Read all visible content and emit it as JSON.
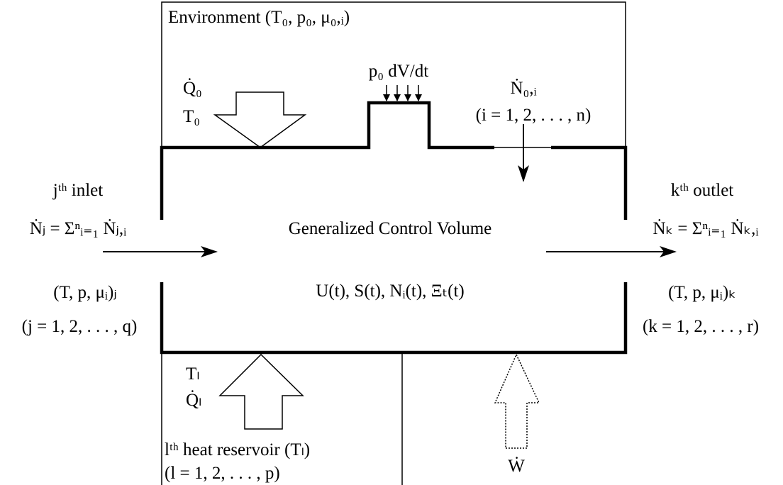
{
  "environment": {
    "label": "Environment (T₀, p₀, μ₀,ᵢ)",
    "heat": "Q̇₀",
    "temperature": "T₀",
    "work": "p₀ dV/dt",
    "flow": "Ṅ₀,ᵢ",
    "flow_range": "(i = 1, 2, . . . , n)"
  },
  "inlet": {
    "title": "jᵗʰ inlet",
    "flow": "Ṅⱼ = Σⁿᵢ₌₁ Ṅⱼ,ᵢ",
    "state": "(T, p, μᵢ)ⱼ",
    "range": "(j = 1, 2, . . . , q)"
  },
  "outlet": {
    "title": "kᵗʰ outlet",
    "flow": "Ṅₖ = Σⁿᵢ₌₁ Ṅₖ,ᵢ",
    "state": "(T, p, μᵢ)ₖ",
    "range": "(k = 1, 2, . . . , r)"
  },
  "control_volume": {
    "title": "Generalized Control Volume",
    "state": "U(t), S(t), Nᵢ(t), Ξₜ(t)"
  },
  "reservoir": {
    "temperature": "Tₗ",
    "heat": "Q̇ₗ",
    "label": "lᵗʰ heat reservoir (Tₗ)",
    "range": "(l = 1, 2, . . . , p)"
  },
  "work": {
    "label": "Ẇ"
  }
}
